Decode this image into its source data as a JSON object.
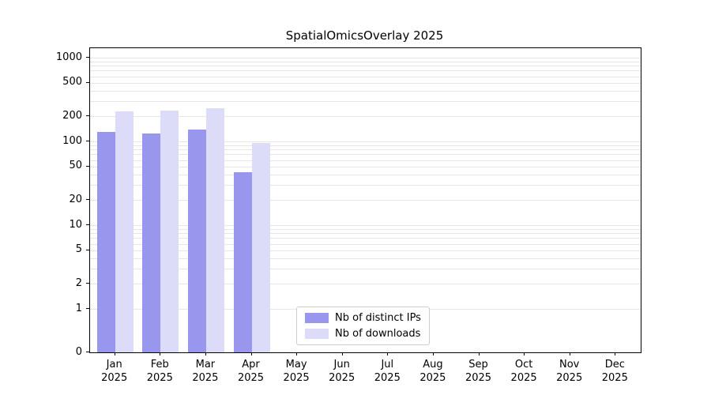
{
  "chart_data": {
    "type": "bar",
    "title": "SpatialOmicsOverlay 2025",
    "categories": [
      "Jan",
      "Feb",
      "Mar",
      "Apr",
      "May",
      "Jun",
      "Jul",
      "Aug",
      "Sep",
      "Oct",
      "Nov",
      "Dec"
    ],
    "year_label": "2025",
    "series": [
      {
        "name": "Nb of distinct IPs",
        "color": "#9996ee",
        "values": [
          130,
          125,
          140,
          43,
          0,
          0,
          0,
          0,
          0,
          0,
          0,
          0
        ]
      },
      {
        "name": "Nb of downloads",
        "color": "#dcdcf9",
        "values": [
          230,
          235,
          250,
          95,
          0,
          0,
          0,
          0,
          0,
          0,
          0,
          0
        ]
      }
    ],
    "yscale": "symlog",
    "yticks": [
      0,
      1,
      2,
      5,
      10,
      20,
      50,
      100,
      200,
      500,
      1000
    ],
    "ylim": [
      0,
      1200
    ],
    "grid": "horizontal",
    "legend_position": "lower center"
  }
}
